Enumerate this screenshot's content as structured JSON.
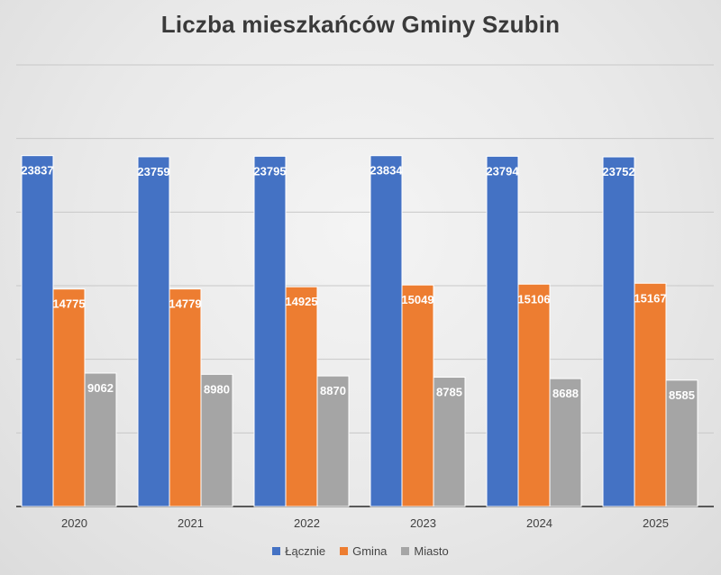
{
  "chart_data": {
    "type": "bar",
    "title": "Liczba mieszkańców Gminy Szubin",
    "categories": [
      "2020",
      "2021",
      "2022",
      "2023",
      "2024",
      "2025"
    ],
    "series": [
      {
        "name": "Łącznie",
        "color": "#4472c4",
        "values": [
          23837,
          23759,
          23795,
          23834,
          23794,
          23752
        ]
      },
      {
        "name": "Gmina",
        "color": "#ed7d31",
        "values": [
          14775,
          14779,
          14925,
          15049,
          15106,
          15167
        ]
      },
      {
        "name": "Miasto",
        "color": "#a5a5a5",
        "values": [
          9062,
          8980,
          8870,
          8785,
          8688,
          8585
        ]
      }
    ],
    "ylim": [
      0,
      30000
    ],
    "y_gridlines": [
      5000,
      10000,
      15000,
      20000,
      25000,
      30000
    ],
    "y_tick_labels_visible": false,
    "grid": true,
    "data_labels": true,
    "legend_position": "bottom"
  }
}
